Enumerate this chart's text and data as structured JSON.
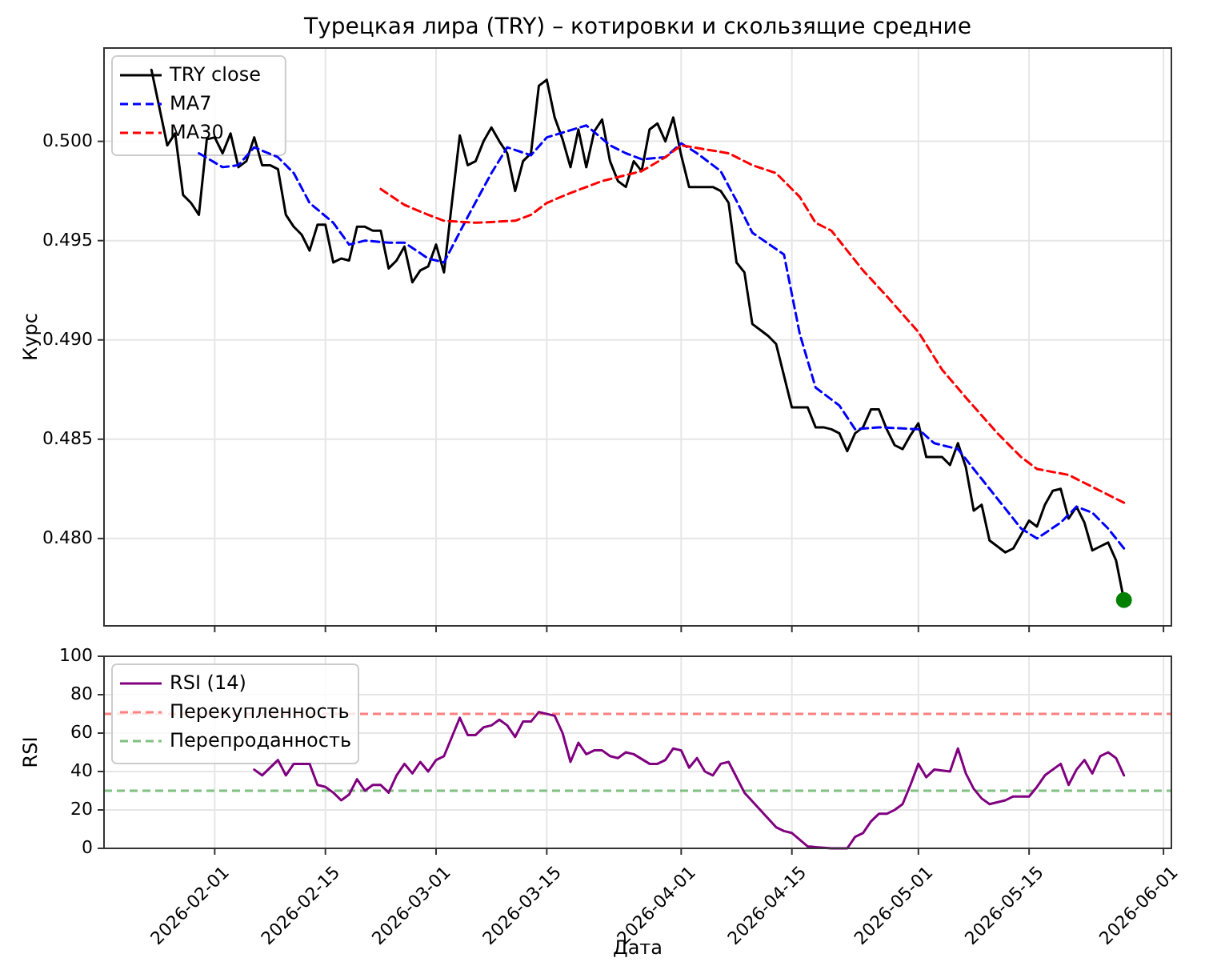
{
  "chart_data": [
    {
      "type": "line",
      "title": "Турецкая лира (TRY) – котировки и скользящие средние",
      "ylabel": "Курс",
      "xlim": [
        "2026-01-18",
        "2026-06-02"
      ],
      "ylim": [
        0.4756,
        0.5047
      ],
      "xticks": [
        "2026-02-01",
        "2026-02-15",
        "2026-03-01",
        "2026-03-15",
        "2026-04-01",
        "2026-04-15",
        "2026-05-01",
        "2026-05-15",
        "2026-06-01"
      ],
      "yticks": [
        {
          "value": 0.48,
          "label": "0.480"
        },
        {
          "value": 0.485,
          "label": "0.485"
        },
        {
          "value": 0.49,
          "label": "0.490"
        },
        {
          "value": 0.495,
          "label": "0.495"
        },
        {
          "value": 0.5,
          "label": "0.500"
        }
      ],
      "tick_labels": "y",
      "grid": true,
      "legend": "top left",
      "series": [
        {
          "name": "TRY close",
          "color": "#000000",
          "line_style": "solid",
          "x": [
            "2026-01-24",
            "2026-01-26",
            "2026-01-27",
            "2026-01-28",
            "2026-01-29",
            "2026-01-30",
            "2026-01-31",
            "2026-02-01",
            "2026-02-02",
            "2026-02-03",
            "2026-02-04",
            "2026-02-05",
            "2026-02-06",
            "2026-02-07",
            "2026-02-08",
            "2026-02-09",
            "2026-02-10",
            "2026-02-11",
            "2026-02-12",
            "2026-02-13",
            "2026-02-14",
            "2026-02-15",
            "2026-02-16",
            "2026-02-17",
            "2026-02-18",
            "2026-02-19",
            "2026-02-20",
            "2026-02-21",
            "2026-02-22",
            "2026-02-23",
            "2026-02-24",
            "2026-02-25",
            "2026-02-26",
            "2026-02-27",
            "2026-02-28",
            "2026-03-01",
            "2026-03-02",
            "2026-03-03",
            "2026-03-04",
            "2026-03-05",
            "2026-03-06",
            "2026-03-07",
            "2026-03-08",
            "2026-03-09",
            "2026-03-10",
            "2026-03-11",
            "2026-03-12",
            "2026-03-13",
            "2026-03-14",
            "2026-03-15",
            "2026-03-16",
            "2026-03-17",
            "2026-03-18",
            "2026-03-19",
            "2026-03-20",
            "2026-03-21",
            "2026-03-22",
            "2026-03-23",
            "2026-03-24",
            "2026-03-25",
            "2026-03-26",
            "2026-03-27",
            "2026-03-28",
            "2026-03-29",
            "2026-03-30",
            "2026-03-31",
            "2026-04-01",
            "2026-04-02",
            "2026-04-03",
            "2026-04-04",
            "2026-04-05",
            "2026-04-06",
            "2026-04-07",
            "2026-04-08",
            "2026-04-09",
            "2026-04-10",
            "2026-04-11",
            "2026-04-12",
            "2026-04-13",
            "2026-04-14",
            "2026-04-15",
            "2026-04-16",
            "2026-04-17",
            "2026-04-18",
            "2026-04-19",
            "2026-04-20",
            "2026-04-21",
            "2026-04-22",
            "2026-04-23",
            "2026-04-24",
            "2026-04-25",
            "2026-04-26",
            "2026-04-27",
            "2026-04-28",
            "2026-04-29",
            "2026-04-30",
            "2026-05-01",
            "2026-05-02",
            "2026-05-03",
            "2026-05-04",
            "2026-05-05",
            "2026-05-06",
            "2026-05-07",
            "2026-05-08",
            "2026-05-09",
            "2026-05-10",
            "2026-05-11",
            "2026-05-12",
            "2026-05-13",
            "2026-05-14",
            "2026-05-15",
            "2026-05-16",
            "2026-05-17",
            "2026-05-18",
            "2026-05-19",
            "2026-05-20",
            "2026-05-21",
            "2026-05-22",
            "2026-05-23",
            "2026-05-24",
            "2026-05-25",
            "2026-05-26",
            "2026-05-27"
          ],
          "values": [
            0.5036,
            0.4998,
            0.5004,
            0.4973,
            0.4969,
            0.4963,
            0.5001,
            0.5002,
            0.4994,
            0.5004,
            0.4987,
            0.499,
            0.5002,
            0.4988,
            0.4988,
            0.4986,
            0.4963,
            0.4957,
            0.4953,
            0.4945,
            0.4958,
            0.4958,
            0.4939,
            0.4941,
            0.494,
            0.4957,
            0.4957,
            0.4955,
            0.4955,
            0.4936,
            0.494,
            0.4947,
            0.4929,
            0.4935,
            0.4937,
            0.4948,
            0.4934,
            0.4969,
            0.5003,
            0.4988,
            0.499,
            0.5,
            0.5007,
            0.5,
            0.4994,
            0.4975,
            0.499,
            0.4994,
            0.5028,
            0.5031,
            0.5012,
            0.5001,
            0.4987,
            0.5006,
            0.4987,
            0.5005,
            0.5011,
            0.499,
            0.498,
            0.4977,
            0.499,
            0.4985,
            0.5006,
            0.5009,
            0.5,
            0.5012,
            0.4993,
            0.4977,
            0.4977,
            0.4977,
            0.4977,
            0.4975,
            0.4969,
            0.4939,
            0.4934,
            0.4908,
            0.4905,
            0.4902,
            0.4898,
            0.4882,
            0.4866,
            0.4866,
            0.4866,
            0.4856,
            0.4856,
            0.4855,
            0.4853,
            0.4844,
            0.4853,
            0.4856,
            0.4865,
            0.4865,
            0.4855,
            0.4847,
            0.4845,
            0.4852,
            0.4858,
            0.4841,
            0.4841,
            0.4841,
            0.4837,
            0.4848,
            0.4836,
            0.4814,
            0.4817,
            0.4799,
            0.4796,
            0.4793,
            0.4795,
            0.4802,
            0.4809,
            0.4806,
            0.4817,
            0.4824,
            0.4825,
            0.481,
            0.4816,
            0.4808,
            0.4794,
            0.4796,
            0.4798,
            0.4789,
            0.4769
          ]
        },
        {
          "name": "MA7",
          "color": "#0000ff",
          "line_style": "dashed",
          "x": [
            "2026-01-30",
            "2026-02-02",
            "2026-02-04",
            "2026-02-06",
            "2026-02-09",
            "2026-02-11",
            "2026-02-13",
            "2026-02-16",
            "2026-02-18",
            "2026-02-20",
            "2026-02-23",
            "2026-02-25",
            "2026-02-28",
            "2026-03-02",
            "2026-03-05",
            "2026-03-08",
            "2026-03-10",
            "2026-03-13",
            "2026-03-15",
            "2026-03-20",
            "2026-03-23",
            "2026-03-25",
            "2026-03-27",
            "2026-03-30",
            "2026-04-01",
            "2026-04-03",
            "2026-04-06",
            "2026-04-08",
            "2026-04-10",
            "2026-04-14",
            "2026-04-16",
            "2026-04-18",
            "2026-04-21",
            "2026-04-23",
            "2026-04-26",
            "2026-05-01",
            "2026-05-03",
            "2026-05-06",
            "2026-05-10",
            "2026-05-14",
            "2026-05-16",
            "2026-05-19",
            "2026-05-21",
            "2026-05-23",
            "2026-05-25",
            "2026-05-27"
          ],
          "values": [
            0.4994,
            0.4987,
            0.4988,
            0.4997,
            0.4992,
            0.4984,
            0.4969,
            0.4959,
            0.4948,
            0.495,
            0.4949,
            0.4949,
            0.4941,
            0.4939,
            0.4962,
            0.4984,
            0.4997,
            0.4993,
            0.5002,
            0.5008,
            0.4998,
            0.4994,
            0.4991,
            0.4992,
            0.4999,
            0.4994,
            0.4985,
            0.497,
            0.4954,
            0.4943,
            0.4903,
            0.4876,
            0.4867,
            0.4855,
            0.4856,
            0.4855,
            0.4848,
            0.4845,
            0.4825,
            0.4805,
            0.48,
            0.4808,
            0.4816,
            0.4813,
            0.4805,
            0.4795
          ]
        },
        {
          "name": "MA30",
          "color": "#ff0000",
          "line_style": "dashed",
          "x": [
            "2026-02-22",
            "2026-02-25",
            "2026-02-28",
            "2026-03-02",
            "2026-03-06",
            "2026-03-11",
            "2026-03-13",
            "2026-03-15",
            "2026-03-18",
            "2026-03-22",
            "2026-03-27",
            "2026-03-30",
            "2026-04-01",
            "2026-04-04",
            "2026-04-07",
            "2026-04-10",
            "2026-04-13",
            "2026-04-16",
            "2026-04-18",
            "2026-04-20",
            "2026-04-24",
            "2026-04-27",
            "2026-05-01",
            "2026-05-04",
            "2026-05-07",
            "2026-05-11",
            "2026-05-14",
            "2026-05-16",
            "2026-05-20",
            "2026-05-23",
            "2026-05-27"
          ],
          "values": [
            0.4976,
            0.4968,
            0.4963,
            0.496,
            0.4959,
            0.496,
            0.4963,
            0.4969,
            0.4974,
            0.498,
            0.4985,
            0.4992,
            0.4998,
            0.4996,
            0.4994,
            0.4988,
            0.4984,
            0.4972,
            0.4959,
            0.4955,
            0.4935,
            0.4922,
            0.4904,
            0.4885,
            0.4871,
            0.4853,
            0.4841,
            0.4835,
            0.4832,
            0.4826,
            0.4818
          ]
        },
        {
          "type": "scatter",
          "color": "#008000",
          "marker": "circle",
          "x": [
            "2026-05-27"
          ],
          "values": [
            0.4769
          ]
        }
      ]
    },
    {
      "type": "line",
      "xlabel": "Дата",
      "ylabel": "RSI",
      "xlim": [
        "2026-01-18",
        "2026-06-02"
      ],
      "ylim": [
        0,
        100
      ],
      "xticks": [
        "2026-02-01",
        "2026-02-15",
        "2026-03-01",
        "2026-03-15",
        "2026-04-01",
        "2026-04-15",
        "2026-05-01",
        "2026-05-15",
        "2026-06-01"
      ],
      "yticks": [
        0,
        20,
        40,
        60,
        80,
        100
      ],
      "grid": true,
      "legend": "top left",
      "ref_lines": [
        {
          "axis": "y",
          "value": 70,
          "label": "Перекупленность",
          "color": "#ff8080",
          "line_style": "dashed"
        },
        {
          "axis": "y",
          "value": 30,
          "label": "Перепроданность",
          "color": "#80c080",
          "line_style": "dashed"
        }
      ],
      "series": [
        {
          "name": "RSI (14)",
          "color": "#800080",
          "line_style": "solid",
          "x": [
            "2026-02-06",
            "2026-02-07",
            "2026-02-09",
            "2026-02-10",
            "2026-02-11",
            "2026-02-13",
            "2026-02-14",
            "2026-02-15",
            "2026-02-16",
            "2026-02-17",
            "2026-02-18",
            "2026-02-19",
            "2026-02-20",
            "2026-02-21",
            "2026-02-22",
            "2026-02-23",
            "2026-02-24",
            "2026-02-25",
            "2026-02-26",
            "2026-02-27",
            "2026-02-28",
            "2026-03-01",
            "2026-03-02",
            "2026-03-03",
            "2026-03-04",
            "2026-03-05",
            "2026-03-06",
            "2026-03-07",
            "2026-03-08",
            "2026-03-09",
            "2026-03-10",
            "2026-03-11",
            "2026-03-12",
            "2026-03-13",
            "2026-03-14",
            "2026-03-16",
            "2026-03-17",
            "2026-03-18",
            "2026-03-19",
            "2026-03-20",
            "2026-03-21",
            "2026-03-22",
            "2026-03-23",
            "2026-03-24",
            "2026-03-25",
            "2026-03-26",
            "2026-03-28",
            "2026-03-29",
            "2026-03-30",
            "2026-03-31",
            "2026-04-01",
            "2026-04-02",
            "2026-04-03",
            "2026-04-04",
            "2026-04-05",
            "2026-04-06",
            "2026-04-07",
            "2026-04-08",
            "2026-04-09",
            "2026-04-11",
            "2026-04-13",
            "2026-04-14",
            "2026-04-15",
            "2026-04-17",
            "2026-04-20",
            "2026-04-22",
            "2026-04-23",
            "2026-04-24",
            "2026-04-25",
            "2026-04-26",
            "2026-04-27",
            "2026-04-28",
            "2026-04-29",
            "2026-04-30",
            "2026-05-01",
            "2026-05-02",
            "2026-05-03",
            "2026-05-05",
            "2026-05-06",
            "2026-05-07",
            "2026-05-08",
            "2026-05-09",
            "2026-05-10",
            "2026-05-12",
            "2026-05-13",
            "2026-05-15",
            "2026-05-16",
            "2026-05-17",
            "2026-05-19",
            "2026-05-20",
            "2026-05-21",
            "2026-05-22",
            "2026-05-23",
            "2026-05-24",
            "2026-05-25",
            "2026-05-26",
            "2026-05-27"
          ],
          "values": [
            41,
            38,
            46,
            38,
            44,
            44,
            33,
            32,
            29,
            25,
            28,
            36,
            30,
            33,
            33,
            29,
            38,
            44,
            39,
            45,
            40,
            46,
            48,
            58,
            68,
            59,
            59,
            63,
            64,
            67,
            64,
            58,
            66,
            66,
            71,
            69,
            60,
            45,
            55,
            49,
            51,
            51,
            48,
            47,
            50,
            49,
            44,
            44,
            46,
            52,
            51,
            42,
            47,
            40,
            38,
            44,
            45,
            37,
            29,
            20,
            11,
            9,
            8,
            1,
            0,
            0,
            6,
            8,
            14,
            18,
            18,
            20,
            23,
            33,
            44,
            37,
            41,
            40,
            52,
            39,
            31,
            26,
            23,
            25,
            27,
            27,
            32,
            38,
            44,
            33,
            41,
            46,
            39,
            48,
            50,
            47,
            38
          ]
        }
      ]
    }
  ]
}
